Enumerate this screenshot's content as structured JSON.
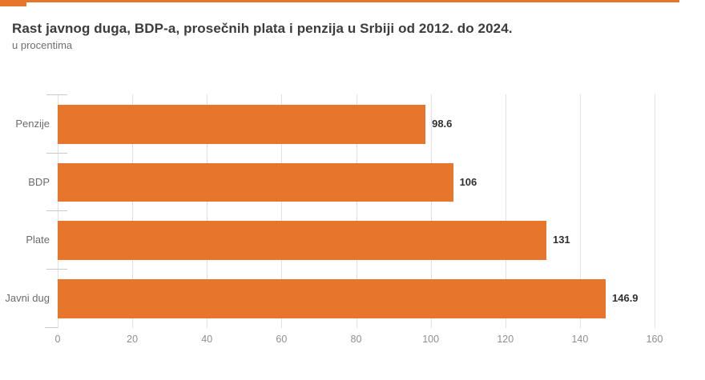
{
  "header": {
    "title": "Rast javnog duga, BDP-a, prosečnih plata i penzija u Srbiji od 2012. do 2024.",
    "subtitle": "u procentima",
    "accent_color": "#e8752c"
  },
  "chart_data": {
    "type": "bar",
    "orientation": "horizontal",
    "title": "Rast javnog duga, BDP-a, prosečnih plata i penzija u Srbiji od 2012. do 2024.",
    "subtitle": "u procentima",
    "unit": "percent",
    "categories": [
      "Penzije",
      "BDP",
      "Plate",
      "Javni dug"
    ],
    "values": [
      98.6,
      106,
      131,
      146.9
    ],
    "value_labels": [
      "98.6",
      "106",
      "131",
      "146.9"
    ],
    "x_ticks": [
      "0",
      "20",
      "40",
      "60",
      "80",
      "100",
      "120",
      "140",
      "160"
    ],
    "x_tick_values": [
      0,
      20,
      40,
      60,
      80,
      100,
      120,
      140,
      160
    ],
    "xlim": [
      0,
      160
    ],
    "grid": true,
    "legend": "none",
    "bar_color": "#e8752c",
    "gridline_color": "#e2e2e2",
    "category_tick_color": "#c9c9c9",
    "category_label_color": "#6b6b6b",
    "value_label_color": "#303030",
    "axis_tick_label_color": "#8f8f8f"
  }
}
